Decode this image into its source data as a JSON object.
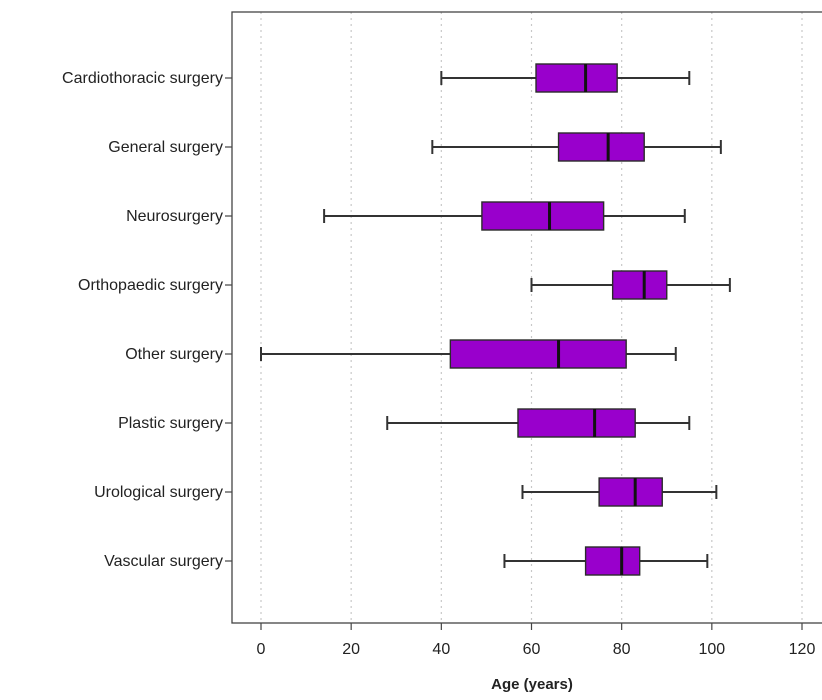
{
  "chart_data": {
    "type": "boxplot",
    "orientation": "horizontal",
    "title": "",
    "xlabel": "Age (years)",
    "ylabel": "",
    "xlim": [
      -6,
      124
    ],
    "xticks": [
      0,
      20,
      40,
      60,
      80,
      100,
      120
    ],
    "grid": "vertical dotted at x ticks",
    "box_color": "#9900cc",
    "categories": [
      "Cardiothoracic surgery",
      "General surgery",
      "Neurosurgery",
      "Orthopaedic surgery",
      "Other surgery",
      "Plastic surgery",
      "Urological surgery",
      "Vascular surgery"
    ],
    "boxes": [
      {
        "min": 40,
        "q1": 61,
        "median": 72,
        "q3": 79,
        "max": 95
      },
      {
        "min": 38,
        "q1": 66,
        "median": 77,
        "q3": 85,
        "max": 102
      },
      {
        "min": 14,
        "q1": 49,
        "median": 64,
        "q3": 76,
        "max": 94
      },
      {
        "min": 60,
        "q1": 78,
        "median": 85,
        "q3": 90,
        "max": 104
      },
      {
        "min": 0,
        "q1": 42,
        "median": 66,
        "q3": 81,
        "max": 92
      },
      {
        "min": 28,
        "q1": 57,
        "median": 74,
        "q3": 83,
        "max": 95
      },
      {
        "min": 58,
        "q1": 75,
        "median": 83,
        "q3": 89,
        "max": 101
      },
      {
        "min": 54,
        "q1": 72,
        "median": 80,
        "q3": 84,
        "max": 99
      }
    ]
  }
}
